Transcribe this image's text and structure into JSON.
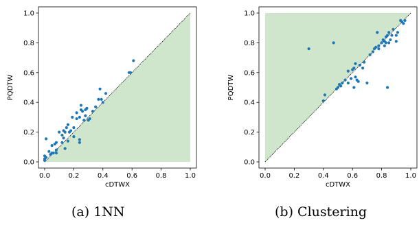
{
  "chart_data": [
    {
      "type": "scatter",
      "caption": "(a) 1NN",
      "xlabel": "cDTWX",
      "ylabel": "PQDTW",
      "xlim": [
        0,
        1
      ],
      "ylim": [
        0,
        1
      ],
      "xticks": [
        "0.0",
        "0.2",
        "0.4",
        "0.6",
        "0.8",
        "1.0"
      ],
      "yticks": [
        "0.0",
        "0.2",
        "0.4",
        "0.6",
        "0.8",
        "1.0"
      ],
      "shaded_region": "below-diagonal",
      "diagonal": true,
      "grid": false,
      "points_color": "#1f77b4",
      "region_color": "#cfe6cc",
      "points": [
        [
          0.0,
          0.04
        ],
        [
          0.0,
          0.02
        ],
        [
          0.0,
          0.01
        ],
        [
          0.01,
          0.03
        ],
        [
          0.01,
          0.155
        ],
        [
          0.03,
          0.07
        ],
        [
          0.04,
          0.05
        ],
        [
          0.05,
          0.06
        ],
        [
          0.05,
          0.11
        ],
        [
          0.06,
          0.06
        ],
        [
          0.07,
          0.12
        ],
        [
          0.08,
          0.08
        ],
        [
          0.08,
          0.13
        ],
        [
          0.08,
          0.06
        ],
        [
          0.1,
          0.2
        ],
        [
          0.12,
          0.13
        ],
        [
          0.12,
          0.18
        ],
        [
          0.13,
          0.21
        ],
        [
          0.13,
          0.16
        ],
        [
          0.14,
          0.09
        ],
        [
          0.14,
          0.2
        ],
        [
          0.15,
          0.23
        ],
        [
          0.16,
          0.14
        ],
        [
          0.16,
          0.25
        ],
        [
          0.17,
          0.2
        ],
        [
          0.18,
          0.21
        ],
        [
          0.19,
          0.3
        ],
        [
          0.2,
          0.23
        ],
        [
          0.2,
          0.17
        ],
        [
          0.22,
          0.29
        ],
        [
          0.22,
          0.33
        ],
        [
          0.24,
          0.3
        ],
        [
          0.24,
          0.15
        ],
        [
          0.25,
          0.35
        ],
        [
          0.25,
          0.38
        ],
        [
          0.26,
          0.34
        ],
        [
          0.27,
          0.28
        ],
        [
          0.28,
          0.35
        ],
        [
          0.28,
          0.31
        ],
        [
          0.29,
          0.36
        ],
        [
          0.3,
          0.28
        ],
        [
          0.31,
          0.29
        ],
        [
          0.33,
          0.34
        ],
        [
          0.35,
          0.37
        ],
        [
          0.37,
          0.42
        ],
        [
          0.38,
          0.49
        ],
        [
          0.39,
          0.42
        ],
        [
          0.4,
          0.4
        ],
        [
          0.42,
          0.46
        ],
        [
          0.58,
          0.6
        ],
        [
          0.59,
          0.6
        ],
        [
          0.61,
          0.68
        ],
        [
          0.24,
          0.13
        ]
      ]
    },
    {
      "type": "scatter",
      "caption": "(b) Clustering",
      "xlabel": "cDTWX",
      "ylabel": "PQDTW",
      "xlim": [
        0,
        1
      ],
      "ylim": [
        0,
        1
      ],
      "xticks": [
        "0.0",
        "0.2",
        "0.4",
        "0.6",
        "0.8",
        "1.0"
      ],
      "yticks": [
        "0.0",
        "0.2",
        "0.4",
        "0.6",
        "0.8",
        "1.0"
      ],
      "shaded_region": "above-diagonal",
      "diagonal": true,
      "grid": false,
      "points_color": "#1f77b4",
      "region_color": "#cfe6cc",
      "points": [
        [
          0.3,
          0.76
        ],
        [
          0.4,
          0.41
        ],
        [
          0.41,
          0.45
        ],
        [
          0.47,
          0.8
        ],
        [
          0.49,
          0.49
        ],
        [
          0.5,
          0.5
        ],
        [
          0.51,
          0.52
        ],
        [
          0.52,
          0.51
        ],
        [
          0.53,
          0.53
        ],
        [
          0.55,
          0.55
        ],
        [
          0.57,
          0.53
        ],
        [
          0.57,
          0.61
        ],
        [
          0.59,
          0.56
        ],
        [
          0.6,
          0.62
        ],
        [
          0.61,
          0.5
        ],
        [
          0.61,
          0.63
        ],
        [
          0.62,
          0.57
        ],
        [
          0.62,
          0.66
        ],
        [
          0.63,
          0.55
        ],
        [
          0.64,
          0.54
        ],
        [
          0.65,
          0.65
        ],
        [
          0.67,
          0.63
        ],
        [
          0.68,
          0.67
        ],
        [
          0.7,
          0.53
        ],
        [
          0.72,
          0.72
        ],
        [
          0.74,
          0.74
        ],
        [
          0.75,
          0.76
        ],
        [
          0.76,
          0.77
        ],
        [
          0.77,
          0.87
        ],
        [
          0.78,
          0.76
        ],
        [
          0.78,
          0.78
        ],
        [
          0.8,
          0.8
        ],
        [
          0.81,
          0.82
        ],
        [
          0.82,
          0.81
        ],
        [
          0.82,
          0.78
        ],
        [
          0.83,
          0.84
        ],
        [
          0.83,
          0.8
        ],
        [
          0.84,
          0.85
        ],
        [
          0.84,
          0.5
        ],
        [
          0.85,
          0.8
        ],
        [
          0.85,
          0.87
        ],
        [
          0.86,
          0.82
        ],
        [
          0.87,
          0.85
        ],
        [
          0.88,
          0.89
        ],
        [
          0.9,
          0.81
        ],
        [
          0.9,
          0.85
        ],
        [
          0.91,
          0.87
        ],
        [
          0.93,
          0.95
        ],
        [
          0.94,
          0.94
        ],
        [
          0.95,
          0.93
        ],
        [
          0.96,
          0.95
        ]
      ]
    }
  ]
}
